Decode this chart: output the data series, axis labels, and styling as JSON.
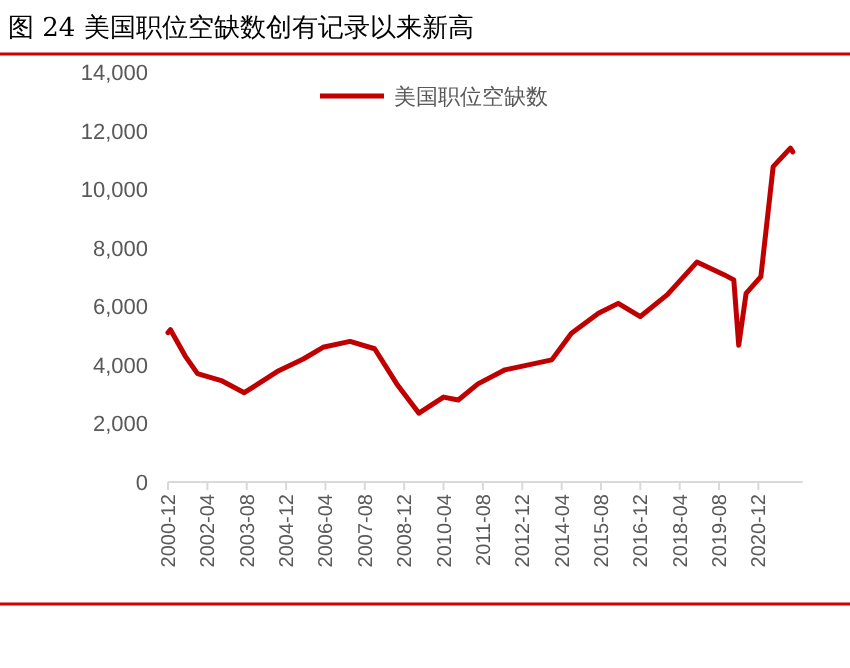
{
  "chart_data": {
    "type": "line",
    "title": "图 24 美国职位空缺数创有记录以来新高",
    "x": [
      "2000-12",
      "2001-01",
      "2001-07",
      "2001-12",
      "2002-10",
      "2003-07",
      "2004-09",
      "2005-07",
      "2006-03",
      "2007-02",
      "2007-12",
      "2008-09",
      "2009-06",
      "2010-04",
      "2010-10",
      "2011-06",
      "2012-05",
      "2013-12",
      "2014-08",
      "2015-07",
      "2016-03",
      "2016-12",
      "2017-11",
      "2018-11",
      "2019-10",
      "2020-02",
      "2020-04",
      "2020-07",
      "2021-01",
      "2021-06",
      "2022-01",
      "2022-02"
    ],
    "series": [
      {
        "name": "美国职位空缺数",
        "color": "#c00000",
        "values": [
          5100,
          5200,
          4300,
          3700,
          3450,
          3050,
          3800,
          4200,
          4600,
          4800,
          4550,
          3350,
          2350,
          2900,
          2800,
          3350,
          3830,
          4170,
          5080,
          5760,
          6100,
          5650,
          6400,
          7510,
          7080,
          6900,
          4670,
          6440,
          7010,
          10770,
          11400,
          11270
        ]
      }
    ],
    "xlim": [
      "2000-12",
      "2022-06"
    ],
    "xticks": [
      "2000-12",
      "2002-04",
      "2003-08",
      "2004-12",
      "2006-04",
      "2007-08",
      "2008-12",
      "2010-04",
      "2011-08",
      "2012-12",
      "2014-04",
      "2015-08",
      "2016-12",
      "2018-04",
      "2019-08",
      "2020-12"
    ],
    "ylim": [
      0,
      14000
    ],
    "yticks": [
      {
        "value": 0,
        "label": "0"
      },
      {
        "value": 2000,
        "label": "2,000"
      },
      {
        "value": 4000,
        "label": "4,000"
      },
      {
        "value": 6000,
        "label": "6,000"
      },
      {
        "value": 8000,
        "label": "8,000"
      },
      {
        "value": 10000,
        "label": "10,000"
      },
      {
        "value": 12000,
        "label": "12,000"
      },
      {
        "value": 14000,
        "label": "14,000"
      }
    ],
    "legend": "top",
    "grid": false
  }
}
